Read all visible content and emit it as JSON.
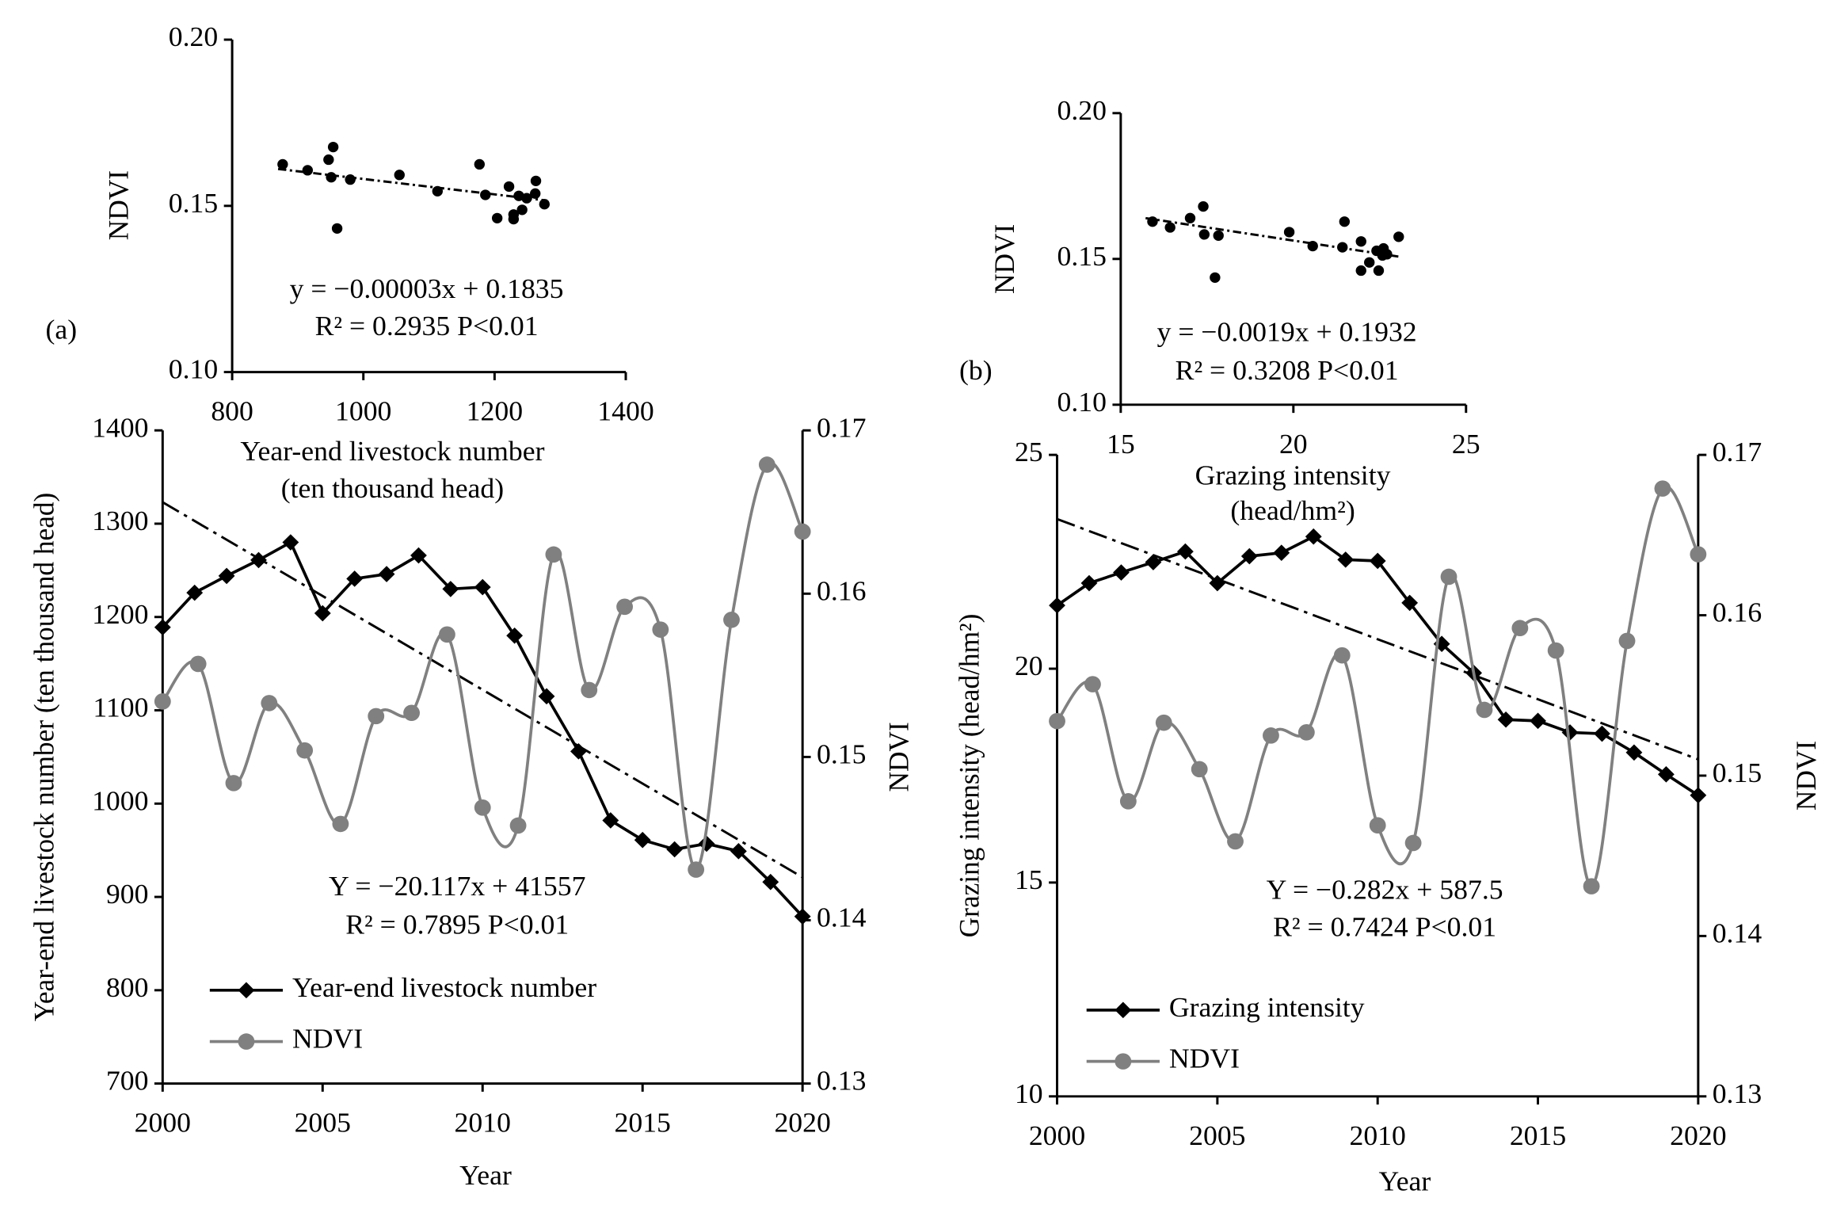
{
  "chart_data": [
    {
      "type": "scatter",
      "panel_label": "(a)",
      "x": [
        877,
        915,
        947,
        954,
        951,
        960,
        980,
        1055,
        1113,
        1177,
        1186,
        1204,
        1222,
        1229,
        1237,
        1242,
        1249,
        1262,
        1263,
        1276,
        1229
      ],
      "values": [
        0.1625,
        0.1607,
        0.1639,
        0.1677,
        0.1586,
        0.1432,
        0.1579,
        0.1593,
        0.1544,
        0.1625,
        0.1533,
        0.1463,
        0.1558,
        0.146,
        0.153,
        0.1488,
        0.1523,
        0.1537,
        0.1575,
        0.1505,
        0.1474
      ],
      "color": "#000000",
      "xlim": [
        800,
        1400
      ],
      "xticks": [
        800,
        1000,
        1200,
        1400
      ],
      "ylim": [
        0.1,
        0.2
      ],
      "yticks": [
        {
          "value": 0.1,
          "label": "0.10"
        },
        0.15,
        {
          "value": 0.2,
          "label": "0.20"
        }
      ],
      "xlabel": [
        "Year-end livestock number",
        "(ten thousand head)"
      ],
      "ylabel": "NDVI",
      "trend_line": {
        "x": [
          870,
          1280
        ],
        "values": [
          0.1611,
          0.1516
        ]
      },
      "annotations": [
        "y = −0.00003x + 0.1835",
        "R² = 0.2935 P<0.01"
      ]
    },
    {
      "type": "line",
      "x": [
        2000,
        2001,
        2002,
        2003,
        2004,
        2005,
        2006,
        2007,
        2008,
        2009,
        2010,
        2011,
        2012,
        2013,
        2014,
        2015,
        2016,
        2017,
        2018,
        2019,
        2020
      ],
      "xlim": [
        2000,
        2020
      ],
      "xticks": [
        2000,
        2005,
        2010,
        2015,
        2020
      ],
      "ylim": [
        700,
        1400
      ],
      "yticks": [
        700,
        800,
        900,
        1000,
        1100,
        1200,
        1300,
        1400
      ],
      "y2lim": [
        0.13,
        0.17
      ],
      "y2ticks": [
        0.13,
        0.14,
        0.15,
        0.16,
        0.17
      ],
      "xlabel": "Year",
      "ylabel": "Year-end livestock number (ten thousand head)",
      "y2label": "NDVI",
      "series": [
        {
          "name": "Year-end livestock number",
          "color": "#000000",
          "marker": "diamond",
          "values": [
            1189,
            1226,
            1244,
            1261,
            1280,
            1204,
            1241,
            1246,
            1266,
            1230,
            1232,
            1180,
            1115,
            1056,
            982,
            961,
            951,
            957,
            949,
            916,
            879
          ]
        },
        {
          "name": "NDVI",
          "color": "#808080",
          "marker": "circle",
          "axis": "y2",
          "smooth": true,
          "x": [
            2000,
            2001.11,
            2002.22,
            2003.33,
            2004.44,
            2005.56,
            2006.67,
            2007.78,
            2008.89,
            2010,
            2011.11,
            2012.22,
            2013.33,
            2014.44,
            2015.56,
            2016.67,
            2017.78,
            2018.89,
            2020
          ],
          "values": [
            0.1534,
            0.1557,
            0.1484,
            0.1533,
            0.1504,
            0.1459,
            0.1525,
            0.1527,
            0.1575,
            0.1469,
            0.1458,
            0.1624,
            0.1541,
            0.1592,
            0.1578,
            0.1431,
            0.1584,
            0.1679,
            0.1638
          ]
        }
      ],
      "trend_line": {
        "x": [
          2000,
          2020
        ],
        "values": [
          1323,
          921
        ]
      },
      "annotations": [
        "Y = −20.117x + 41557",
        "R² = 0.7895 P<0.01"
      ],
      "legend": "lower left"
    },
    {
      "type": "scatter",
      "panel_label": "(b)",
      "x": [
        15.92,
        16.43,
        17.01,
        17.39,
        17.42,
        17.73,
        17.83,
        19.88,
        20.56,
        21.48,
        21.42,
        21.96,
        21.96,
        22.2,
        22.41,
        22.47,
        22.58,
        22.61,
        22.71,
        23.05
      ],
      "values": [
        0.1628,
        0.1608,
        0.164,
        0.168,
        0.1584,
        0.1436,
        0.158,
        0.1592,
        0.1544,
        0.1628,
        0.154,
        0.146,
        0.156,
        0.1488,
        0.1528,
        0.146,
        0.1512,
        0.1536,
        0.1516,
        0.1576
      ],
      "color": "#000000",
      "xlim": [
        15,
        25
      ],
      "xticks": [
        15,
        20,
        25
      ],
      "ylim": [
        0.1,
        0.2
      ],
      "yticks": [
        {
          "value": 0.1,
          "label": "0.10"
        },
        0.15,
        {
          "value": 0.2,
          "label": "0.20"
        }
      ],
      "xlabel": [
        "Grazing intensity",
        "(head/hm²)"
      ],
      "ylabel": "NDVI",
      "trend_line": {
        "x": [
          15.72,
          23.05
        ],
        "values": [
          0.164,
          0.1508
        ]
      },
      "annotations": [
        "y = −0.0019x + 0.1932",
        "R² = 0.3208 P<0.01"
      ]
    },
    {
      "type": "line",
      "x": [
        2000,
        2001,
        2002,
        2003,
        2004,
        2005,
        2006,
        2007,
        2008,
        2009,
        2010,
        2011,
        2012,
        2013,
        2014,
        2015,
        2016,
        2017,
        2018,
        2019,
        2020
      ],
      "xlim": [
        2000,
        2020
      ],
      "xticks": [
        2000,
        2005,
        2010,
        2015,
        2020
      ],
      "ylim": [
        10,
        25
      ],
      "yticks": [
        10,
        15,
        20,
        25
      ],
      "y2lim": [
        0.13,
        0.17
      ],
      "y2ticks": [
        0.13,
        0.14,
        0.15,
        0.16,
        0.17
      ],
      "xlabel": "Year",
      "ylabel": "Grazing  intensity (head/hm²)",
      "y2label": "NDVI",
      "series": [
        {
          "name": "Grazing intensity",
          "color": "#000000",
          "marker": "diamond",
          "values": [
            21.48,
            22.0,
            22.25,
            22.49,
            22.74,
            22.0,
            22.63,
            22.71,
            23.09,
            22.55,
            22.52,
            21.54,
            20.58,
            19.9,
            18.81,
            18.78,
            18.51,
            18.48,
            18.04,
            17.53,
            17.04
          ]
        },
        {
          "name": "NDVI",
          "color": "#808080",
          "marker": "circle",
          "axis": "y2",
          "smooth": true,
          "x": [
            2000,
            2001.11,
            2002.22,
            2003.33,
            2004.44,
            2005.56,
            2006.67,
            2007.78,
            2008.89,
            2010,
            2011.11,
            2012.22,
            2013.33,
            2014.44,
            2015.56,
            2016.67,
            2017.78,
            2018.89,
            2020
          ],
          "values": [
            0.1534,
            0.1557,
            0.1484,
            0.1533,
            0.1504,
            0.1459,
            0.1525,
            0.1527,
            0.1575,
            0.1469,
            0.1458,
            0.1624,
            0.1541,
            0.1592,
            0.1578,
            0.1431,
            0.1584,
            0.1679,
            0.1638
          ]
        }
      ],
      "trend_line": {
        "x": [
          2000,
          2020
        ],
        "values": [
          23.5,
          17.88
        ]
      },
      "annotations": [
        "Y = −0.282x + 587.5",
        "R² = 0.7424 P<0.01"
      ],
      "legend": "lower left"
    }
  ]
}
